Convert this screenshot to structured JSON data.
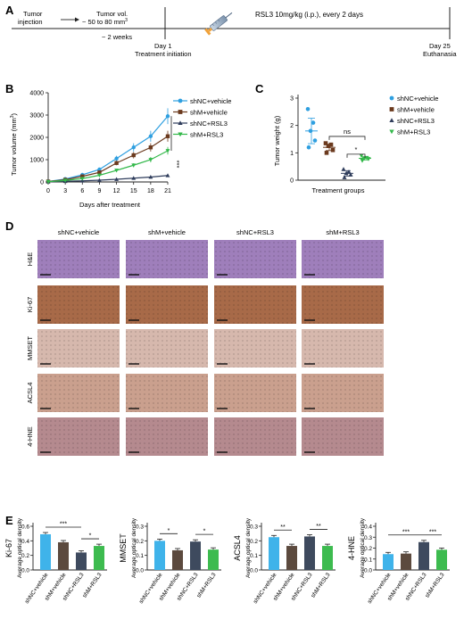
{
  "panel_labels": [
    "A",
    "B",
    "C",
    "D",
    "E"
  ],
  "colors": {
    "shNC_vehicle": "#2e9fe0",
    "shM_vehicle": "#6b3a1e",
    "shNC_RSL3": "#2f3d5c",
    "shM_RSL3": "#33b84a",
    "e_shNC_vehicle": "#3fb3ea",
    "e_shM_vehicle": "#5c4a3e",
    "e_shNC_RSL3": "#3e4a5e",
    "e_shM_RSL3": "#3dbb4f",
    "he_stain": "#9f7fbb",
    "ki67_stain": "#a86b4a",
    "mmset_stain": "#d6b8ad",
    "acsl4_stain": "#caa08e",
    "hne_stain": "#b58a8f"
  },
  "timeline": {
    "tumor_injection_line1": "Tumor",
    "tumor_injection_line2": "injection",
    "tumor_vol_line1": "Tumor vol.",
    "tumor_vol_line2": "~ 50 to 80 mm",
    "tumor_vol_superscript": "3",
    "weeks": "~ 2 weeks",
    "day1": "Day 1",
    "treatment_initiation": "Treatment initiation",
    "rsl3_dose": "RSL3 10mg/kg (i.p.), every 2 days",
    "day25": "Day 25",
    "euthanasia": "Euthanasia"
  },
  "legend": [
    {
      "label": "shNC+vehicle",
      "marker": "circle"
    },
    {
      "label": "shM+vehicle",
      "marker": "square"
    },
    {
      "label": "shNC+RSL3",
      "marker": "triangle"
    },
    {
      "label": "shM+RSL3",
      "marker": "down-triangle"
    }
  ],
  "chart_data": [
    {
      "type": "line",
      "panel": "B",
      "xlabel": "Days after treatment",
      "ylabel": "Tumor volume (mm",
      "ylabel_superscript": "3",
      "ylabel_close": ")",
      "x": [
        0,
        3,
        6,
        9,
        12,
        15,
        18,
        21
      ],
      "xlim": [
        0,
        21
      ],
      "ylim": [
        0,
        4000
      ],
      "yticks": [
        0,
        1000,
        2000,
        3000,
        4000
      ],
      "series": [
        {
          "name": "shNC+vehicle",
          "values": [
            20,
            130,
            320,
            560,
            1050,
            1550,
            2050,
            2950
          ]
        },
        {
          "name": "shM+vehicle",
          "values": [
            20,
            100,
            250,
            430,
            850,
            1200,
            1550,
            2050
          ]
        },
        {
          "name": "shNC+RSL3",
          "values": [
            10,
            30,
            50,
            80,
            120,
            170,
            220,
            290
          ]
        },
        {
          "name": "shM+RSL3",
          "values": [
            10,
            70,
            150,
            300,
            520,
            750,
            1000,
            1400
          ]
        }
      ],
      "significance": "***"
    },
    {
      "type": "scatter",
      "panel": "C",
      "xlabel": "Treatment groups",
      "ylabel": "Tumor weight (g)",
      "ylim": [
        0,
        3
      ],
      "yticks": [
        0,
        1,
        2,
        3
      ],
      "series": [
        {
          "name": "shNC+vehicle",
          "points": [
            2.6,
            2.1,
            1.8,
            1.45,
            1.2
          ],
          "mean": 1.8
        },
        {
          "name": "shM+vehicle",
          "points": [
            1.35,
            1.3,
            1.25,
            1.1,
            1.0
          ],
          "mean": 1.2
        },
        {
          "name": "shNC+RSL3",
          "points": [
            0.4,
            0.3,
            0.25,
            0.2,
            0.1
          ],
          "mean": 0.25
        },
        {
          "name": "shM+RSL3",
          "points": [
            0.9,
            0.82,
            0.8,
            0.78,
            0.72
          ],
          "mean": 0.8
        }
      ],
      "comparisons": [
        {
          "groups": [
            1,
            3
          ],
          "label": "ns"
        },
        {
          "groups": [
            2,
            3
          ],
          "label": "*"
        }
      ]
    },
    {
      "type": "bar",
      "panel": "E",
      "title": "Ki-67",
      "ylabel": "Average optical density",
      "categories": [
        "shNC+vehicle",
        "shM+vehicle",
        "shNC+RSL3",
        "shM+RSL3"
      ],
      "values": [
        0.49,
        0.38,
        0.24,
        0.33
      ],
      "ylim": [
        0,
        0.6
      ],
      "yticks": [
        "0.0",
        "0.2",
        "0.4",
        "0.6"
      ],
      "comparisons": [
        {
          "groups": [
            0,
            2
          ],
          "label": "***"
        },
        {
          "groups": [
            2,
            3
          ],
          "label": "*"
        }
      ]
    },
    {
      "type": "bar",
      "panel": "E",
      "title": "MMSET",
      "ylabel": "Average optical density",
      "categories": [
        "shNC+vehicle",
        "shM+vehicle",
        "shNC+RSL3",
        "shM+RSL3"
      ],
      "values": [
        0.2,
        0.135,
        0.195,
        0.14
      ],
      "ylim": [
        0,
        0.3
      ],
      "yticks": [
        "0.0",
        "0.1",
        "0.2",
        "0.3"
      ],
      "comparisons": [
        {
          "groups": [
            0,
            1
          ],
          "label": "*"
        },
        {
          "groups": [
            2,
            3
          ],
          "label": "*"
        }
      ]
    },
    {
      "type": "bar",
      "panel": "E",
      "title": "ACSL4",
      "ylabel": "Average optical density",
      "categories": [
        "shNC+vehicle",
        "shM+vehicle",
        "shNC+RSL3",
        "shM+RSL3"
      ],
      "values": [
        0.225,
        0.165,
        0.23,
        0.165
      ],
      "ylim": [
        0,
        0.3
      ],
      "yticks": [
        "0.0",
        "0.1",
        "0.2",
        "0.3"
      ],
      "comparisons": [
        {
          "groups": [
            0,
            1
          ],
          "label": "**"
        },
        {
          "groups": [
            2,
            3
          ],
          "label": "**"
        }
      ]
    },
    {
      "type": "bar",
      "panel": "E",
      "title": "4-HNE",
      "ylabel": "Average optical density",
      "categories": [
        "shNC+vehicle",
        "shM+vehicle",
        "shNC+RSL3",
        "shM+RSL3"
      ],
      "values": [
        0.145,
        0.15,
        0.255,
        0.185
      ],
      "ylim": [
        0,
        0.4
      ],
      "yticks": [
        "0.0",
        "0.1",
        "0.2",
        "0.3",
        "0.4"
      ],
      "comparisons": [
        {
          "groups": [
            0,
            2
          ],
          "label": "***"
        },
        {
          "groups": [
            2,
            3
          ],
          "label": "***"
        }
      ]
    }
  ],
  "histology": {
    "columns": [
      "shNC+vehicle",
      "shM+vehicle",
      "shNC+RSL3",
      "shM+RSL3"
    ],
    "rows": [
      "H&E",
      "Ki-67",
      "MMSET",
      "ACSL4",
      "4-HNE"
    ]
  }
}
